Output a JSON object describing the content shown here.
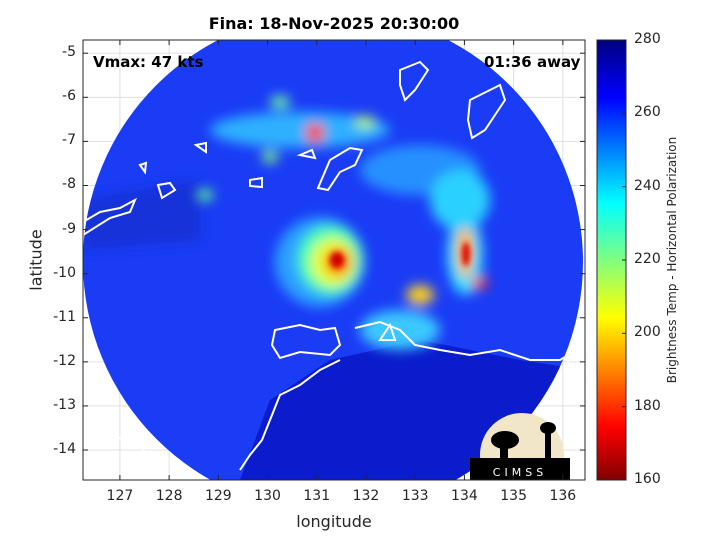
{
  "chart_data": {
    "type": "heatmap",
    "title": "Fina: 18-Nov-2025 20:30:00",
    "xlabel": "longitude",
    "ylabel": "latitude",
    "xlim": [
      126.25,
      136.45
    ],
    "ylim": [
      -14.68,
      -4.7
    ],
    "xticks": [
      "127",
      "128",
      "129",
      "130",
      "131",
      "132",
      "133",
      "134",
      "135",
      "136"
    ],
    "yticks": [
      "-5",
      "-6",
      "-7",
      "-8",
      "-9",
      "-10",
      "-11",
      "-12",
      "-13",
      "-14"
    ],
    "grid": true,
    "colorbar": {
      "label": "Brightness Temp - Horizontal Polarization",
      "range": [
        160,
        280
      ],
      "ticks": [
        "280",
        "260",
        "240",
        "220",
        "200",
        "180",
        "160"
      ],
      "colormap": "jet"
    },
    "annotations": {
      "vmax": "Vmax: 47 kts",
      "time_away": "01:36 away"
    },
    "features": [
      {
        "name": "storm center",
        "lon": 131.4,
        "lat": -9.8,
        "value": 180
      },
      {
        "name": "eastern rainband",
        "lon": 134.0,
        "lat": -9.6,
        "value": 185
      }
    ]
  },
  "logo": {
    "text": "CIMSS"
  },
  "colors": {
    "background_ocean": "#1e3cff",
    "land": "#0a1fc8",
    "coastline": "#ffffff"
  }
}
